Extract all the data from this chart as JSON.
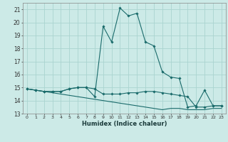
{
  "xlabel": "Humidex (Indice chaleur)",
  "background_color": "#cceae7",
  "grid_color": "#aad4d0",
  "line_color": "#1a6b6b",
  "xlim": [
    -0.5,
    23.5
  ],
  "ylim": [
    13,
    21.5
  ],
  "yticks": [
    13,
    14,
    15,
    16,
    17,
    18,
    19,
    20,
    21
  ],
  "xticks": [
    0,
    1,
    2,
    3,
    4,
    5,
    6,
    7,
    8,
    9,
    10,
    11,
    12,
    13,
    14,
    15,
    16,
    17,
    18,
    19,
    20,
    21,
    22,
    23
  ],
  "line1_x": [
    0,
    1,
    2,
    3,
    4,
    5,
    6,
    7,
    8,
    9,
    10,
    11,
    12,
    13,
    14,
    15,
    16,
    17,
    18,
    19,
    20,
    21,
    22,
    23
  ],
  "line1_y": [
    14.9,
    14.8,
    14.7,
    14.7,
    14.7,
    14.9,
    15.0,
    15.0,
    14.3,
    19.7,
    18.5,
    21.1,
    20.5,
    20.7,
    18.5,
    18.2,
    16.2,
    15.8,
    15.7,
    13.5,
    13.6,
    14.8,
    13.6,
    13.6
  ],
  "line2_x": [
    0,
    1,
    2,
    3,
    4,
    5,
    6,
    7,
    8,
    9,
    10,
    11,
    12,
    13,
    14,
    15,
    16,
    17,
    18,
    19,
    20,
    21,
    22,
    23
  ],
  "line2_y": [
    14.9,
    14.8,
    14.7,
    14.7,
    14.7,
    14.9,
    15.0,
    15.0,
    14.9,
    14.5,
    14.5,
    14.5,
    14.6,
    14.6,
    14.7,
    14.7,
    14.6,
    14.5,
    14.4,
    14.3,
    13.5,
    13.5,
    13.6,
    13.6
  ],
  "line3_x": [
    0,
    1,
    2,
    3,
    4,
    5,
    6,
    7,
    8,
    9,
    10,
    11,
    12,
    13,
    14,
    15,
    16,
    17,
    18,
    19,
    20,
    21,
    22,
    23
  ],
  "line3_y": [
    14.9,
    14.8,
    14.7,
    14.6,
    14.5,
    14.4,
    14.3,
    14.2,
    14.1,
    14.0,
    13.9,
    13.8,
    13.7,
    13.6,
    13.5,
    13.4,
    13.3,
    13.4,
    13.4,
    13.3,
    13.3,
    13.3,
    13.4,
    13.4
  ]
}
